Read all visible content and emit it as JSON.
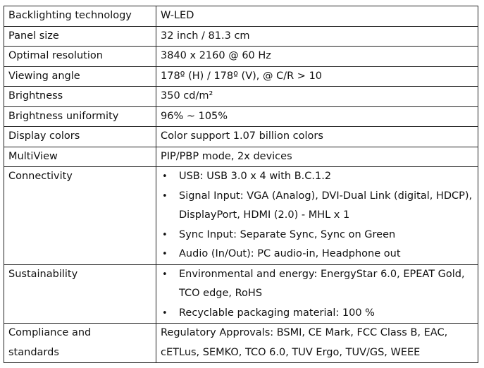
{
  "rows": [
    {
      "label": "Backlighting technology",
      "value": "W-LED"
    },
    {
      "label": "Panel size",
      "value": "32 inch / 81.3 cm"
    },
    {
      "label": "Optimal resolution",
      "value": "3840 x 2160 @ 60 Hz"
    },
    {
      "label": "Viewing angle",
      "value": "178º (H) / 178º (V), @ C/R > 10"
    },
    {
      "label": "Brightness",
      "value": "350 cd/m²"
    },
    {
      "label": "Brightness uniformity",
      "value": "96% ~ 105%"
    },
    {
      "label": "Display colors",
      "value": "Color support 1.07 billion colors"
    },
    {
      "label": "MultiView",
      "value": "PIP/PBP mode, 2x devices"
    }
  ],
  "connectivity": {
    "label": "Connectivity",
    "items": [
      "USB: USB 3.0 x 4 with B.C.1.2",
      "Signal Input: VGA (Analog), DVI-Dual Link (digital, HDCP), DisplayPort, HDMI (2.0) - MHL x 1",
      "Sync Input: Separate Sync, Sync on Green",
      "Audio (In/Out): PC audio-in, Headphone out"
    ]
  },
  "sustainability": {
    "label": "Sustainability",
    "items": [
      "Environmental and energy: EnergyStar 6.0, EPEAT Gold, TCO edge, RoHS",
      "Recyclable packaging material: 100 %"
    ]
  },
  "compliance": {
    "label": "Compliance and standards",
    "value": "Regulatory Approvals: BSMI, CE Mark, FCC Class B, EAC, cETLus, SEMKO, TCO 6.0, TUV Ergo, TUV/GS, WEEE"
  },
  "bullet_char": "•"
}
